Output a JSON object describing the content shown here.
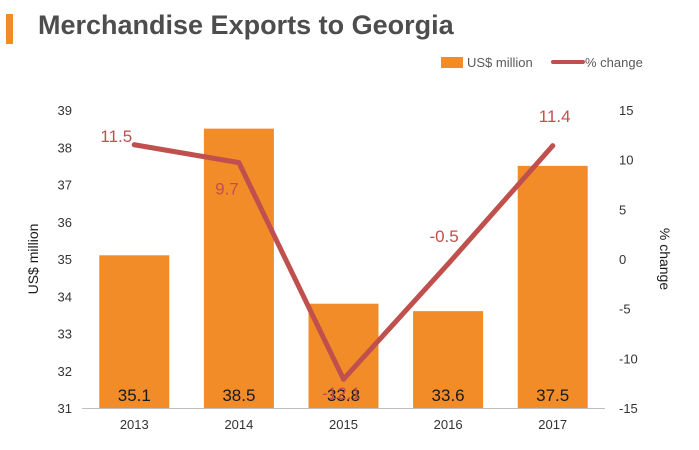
{
  "title": "Merchandise Exports to Georgia",
  "colors": {
    "bar": "#f28c28",
    "line": "#c0504d",
    "axis_text": "#333333",
    "title_bar": "#f28c28"
  },
  "chart_data": {
    "type": "bar",
    "title": "Merchandise Exports to Georgia",
    "categories": [
      "2013",
      "2014",
      "2015",
      "2016",
      "2017"
    ],
    "series": [
      {
        "name": "US$ million",
        "type": "bar",
        "axis": "left",
        "values": [
          35.1,
          38.5,
          33.8,
          33.6,
          37.5
        ]
      },
      {
        "name": "% change",
        "type": "line",
        "axis": "right",
        "values": [
          11.5,
          9.7,
          -12.1,
          -0.5,
          11.4
        ]
      }
    ],
    "ylabel": "US$ million",
    "ylim": [
      31,
      39
    ],
    "yticks": [
      31,
      32,
      33,
      34,
      35,
      36,
      37,
      38,
      39
    ],
    "y2label": "% change",
    "y2lim": [
      -15,
      15
    ],
    "y2ticks": [
      -15,
      -10,
      -5,
      0,
      5,
      10,
      15
    ],
    "legend": "top-right",
    "grid": false
  }
}
